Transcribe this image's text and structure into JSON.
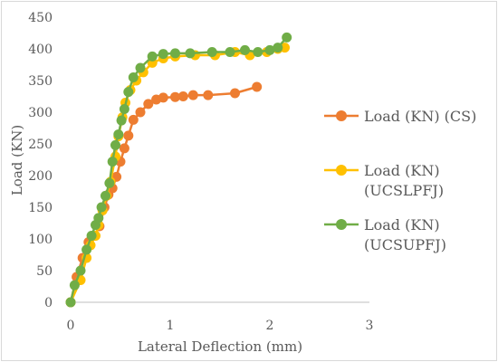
{
  "chart_data": {
    "type": "line",
    "title": "",
    "xlabel": "Lateral Deflection (mm)",
    "ylabel": "Load (KN)",
    "xlim": [
      0,
      3
    ],
    "ylim": [
      0,
      450
    ],
    "xticks": [
      "0",
      "1",
      "2",
      "3"
    ],
    "yticks": [
      "0",
      "50",
      "100",
      "150",
      "200",
      "250",
      "300",
      "350",
      "400",
      "450"
    ],
    "grid": false,
    "legend_position": "right",
    "series": [
      {
        "name": "Load (KN) (CS)",
        "legend_lines": [
          "Load (KN) (CS)"
        ],
        "color": "#ED7D31",
        "x": [
          0,
          0.06,
          0.12,
          0.18,
          0.24,
          0.29,
          0.34,
          0.38,
          0.42,
          0.46,
          0.5,
          0.54,
          0.58,
          0.63,
          0.7,
          0.78,
          0.86,
          0.93,
          1.05,
          1.13,
          1.23,
          1.38,
          1.65,
          1.87
        ],
        "y": [
          0,
          40,
          70,
          95,
          105,
          120,
          150,
          170,
          180,
          198,
          222,
          243,
          263,
          288,
          300,
          313,
          320,
          323,
          324,
          325,
          327,
          327,
          330,
          340
        ]
      },
      {
        "name": "Load (KN) (UCSLPFJ)",
        "legend_lines": [
          "Load (KN)",
          "(UCSLPFJ)"
        ],
        "color": "#FFC000",
        "x": [
          0,
          0.1,
          0.16,
          0.2,
          0.25,
          0.28,
          0.32,
          0.36,
          0.4,
          0.45,
          0.48,
          0.52,
          0.55,
          0.6,
          0.66,
          0.73,
          0.82,
          0.93,
          1.05,
          1.25,
          1.45,
          1.65,
          1.8,
          1.97,
          2.08,
          2.15
        ],
        "y": [
          0,
          35,
          70,
          90,
          105,
          122,
          145,
          168,
          190,
          230,
          262,
          292,
          315,
          335,
          350,
          363,
          378,
          385,
          388,
          390,
          390,
          395,
          390,
          395,
          400,
          402
        ]
      },
      {
        "name": "Load (KN) (UCSUPFJ)",
        "legend_lines": [
          "Load (KN)",
          "(UCSUPFJ)"
        ],
        "color": "#70AD47",
        "x": [
          0,
          0.04,
          0.1,
          0.16,
          0.21,
          0.25,
          0.28,
          0.31,
          0.35,
          0.39,
          0.42,
          0.45,
          0.48,
          0.51,
          0.54,
          0.58,
          0.63,
          0.7,
          0.82,
          0.93,
          1.05,
          1.2,
          1.42,
          1.6,
          1.75,
          1.88,
          2.0,
          2.08,
          2.17
        ],
        "y": [
          0,
          27,
          50,
          83,
          105,
          122,
          133,
          150,
          168,
          188,
          222,
          248,
          265,
          287,
          305,
          332,
          355,
          370,
          388,
          392,
          393,
          393,
          395,
          395,
          398,
          395,
          398,
          402,
          418
        ]
      }
    ]
  }
}
